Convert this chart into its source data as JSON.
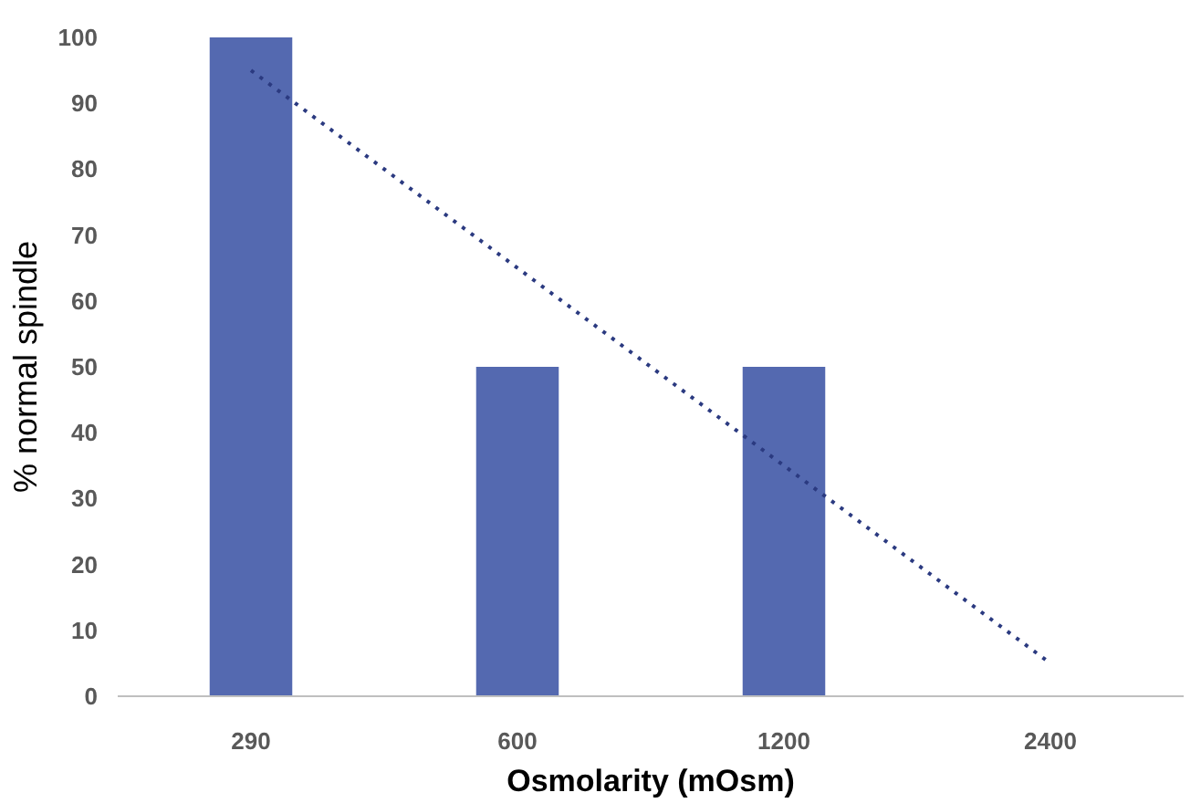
{
  "chart_data": {
    "type": "bar",
    "xlabel": "Osmolarity (mOsm)",
    "ylabel": "% normal spindle",
    "categories": [
      "290",
      "600",
      "1200",
      "2400"
    ],
    "series": [
      {
        "color": "#5469b0",
        "values": [
          100,
          50,
          50,
          0
        ]
      },
      {
        "type": "line",
        "color": "#2b3a80",
        "values": [
          95,
          65,
          35,
          5
        ],
        "line_style": "dotted"
      }
    ],
    "ylim": [
      0,
      100
    ],
    "yticks": [
      0,
      10,
      20,
      30,
      40,
      50,
      60,
      70,
      80,
      90,
      100
    ],
    "grid": false
  }
}
